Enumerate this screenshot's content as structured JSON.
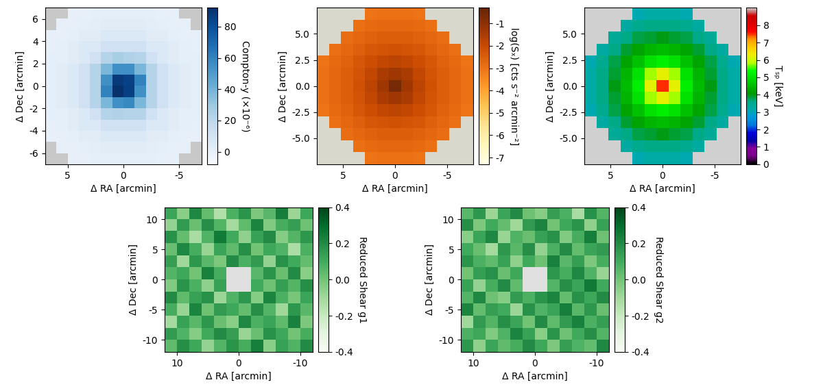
{
  "chart_data": [
    {
      "type": "heatmap",
      "x_label": "Δ RA [arcmin]",
      "y_label": "Δ Dec [arcmin]",
      "xlim": [
        7,
        -7
      ],
      "ylim": [
        -7,
        7
      ],
      "xticks": [
        5,
        0,
        -5
      ],
      "yticks": [
        -6,
        -4,
        -2,
        0,
        2,
        4,
        6
      ],
      "colorbar_label": "Compton-y (×10⁻⁶)",
      "colorbar_range": [
        -8,
        92
      ],
      "colorbar_ticks": [
        0,
        20,
        40,
        60,
        80
      ],
      "cells": [
        [
          null,
          null,
          0,
          0,
          1,
          1,
          1,
          1,
          1,
          1,
          0,
          0,
          null,
          null
        ],
        [
          null,
          0,
          0,
          1,
          2,
          3,
          3,
          3,
          3,
          2,
          1,
          0,
          0,
          null
        ],
        [
          0,
          0,
          1,
          3,
          3,
          6,
          6,
          6,
          6,
          3,
          3,
          1,
          0,
          0
        ],
        [
          0,
          1,
          3,
          6,
          6,
          12,
          12,
          12,
          12,
          6,
          6,
          3,
          1,
          0
        ],
        [
          1,
          1,
          3,
          6,
          12,
          22,
          26,
          24,
          22,
          12,
          6,
          3,
          1,
          1
        ],
        [
          1,
          3,
          6,
          12,
          22,
          38,
          55,
          55,
          38,
          22,
          12,
          6,
          3,
          1
        ],
        [
          1,
          3,
          6,
          12,
          22,
          55,
          88,
          85,
          60,
          22,
          12,
          6,
          3,
          1
        ],
        [
          1,
          3,
          6,
          12,
          22,
          60,
          92,
          86,
          55,
          22,
          12,
          6,
          3,
          1
        ],
        [
          1,
          3,
          6,
          12,
          22,
          38,
          55,
          58,
          38,
          22,
          12,
          6,
          3,
          1
        ],
        [
          1,
          1,
          3,
          6,
          12,
          22,
          24,
          22,
          22,
          12,
          6,
          3,
          1,
          1
        ],
        [
          0,
          1,
          3,
          6,
          6,
          12,
          12,
          12,
          12,
          6,
          6,
          3,
          1,
          0
        ],
        [
          0,
          0,
          1,
          3,
          3,
          6,
          6,
          6,
          6,
          3,
          3,
          1,
          0,
          0
        ],
        [
          null,
          0,
          0,
          1,
          2,
          3,
          3,
          3,
          3,
          2,
          1,
          0,
          0,
          null
        ],
        [
          null,
          null,
          0,
          0,
          1,
          1,
          1,
          1,
          1,
          1,
          0,
          0,
          null,
          null
        ]
      ]
    },
    {
      "type": "heatmap",
      "x_label": "Δ RA [arcmin]",
      "y_label": "Δ Dec [arcmin]",
      "xlim": [
        7.5,
        -7.5
      ],
      "ylim": [
        -7.5,
        7.5
      ],
      "xticks": [
        5,
        0,
        -5
      ],
      "yticks": [
        -5.0,
        -2.5,
        0.0,
        2.5,
        5.0
      ],
      "colorbar_label": "log(Sₓ) [cts s⁻² arcmin⁻²]",
      "colorbar_range": [
        -7.3,
        -0.3
      ],
      "colorbar_ticks": [
        -7,
        -6,
        -5,
        -4,
        -3,
        -2,
        -1
      ],
      "cells": [
        [
          null,
          null,
          null,
          null,
          -3.0,
          -2.95,
          -2.95,
          -2.95,
          -3.0,
          null,
          null,
          null,
          null
        ],
        [
          null,
          null,
          null,
          -2.9,
          -2.8,
          -2.75,
          -2.75,
          -2.75,
          -2.8,
          -2.9,
          null,
          null,
          null
        ],
        [
          null,
          null,
          -2.85,
          -2.75,
          -2.6,
          -2.5,
          -2.5,
          -2.5,
          -2.6,
          -2.75,
          -2.85,
          null,
          null
        ],
        [
          null,
          -2.9,
          -2.75,
          -2.55,
          -2.35,
          -2.25,
          -2.2,
          -2.25,
          -2.35,
          -2.55,
          -2.75,
          -2.9,
          null
        ],
        [
          -3.0,
          -2.8,
          -2.6,
          -2.35,
          -2.1,
          -1.9,
          -1.8,
          -1.9,
          -2.1,
          -2.35,
          -2.6,
          -2.8,
          -3.0
        ],
        [
          -2.95,
          -2.75,
          -2.5,
          -2.25,
          -1.9,
          -1.5,
          -1.3,
          -1.5,
          -1.9,
          -2.25,
          -2.5,
          -2.75,
          -2.95
        ],
        [
          -2.95,
          -2.75,
          -2.5,
          -2.2,
          -1.8,
          -1.3,
          -0.6,
          -1.3,
          -1.8,
          -2.2,
          -2.5,
          -2.75,
          -2.95
        ],
        [
          -2.95,
          -2.75,
          -2.5,
          -2.25,
          -1.9,
          -1.5,
          -1.3,
          -1.5,
          -1.9,
          -2.25,
          -2.5,
          -2.75,
          -2.95
        ],
        [
          -3.0,
          -2.8,
          -2.6,
          -2.35,
          -2.1,
          -1.9,
          -1.8,
          -1.9,
          -2.1,
          -2.35,
          -2.6,
          -2.8,
          -3.0
        ],
        [
          null,
          -2.9,
          -2.75,
          -2.55,
          -2.35,
          -2.25,
          -2.2,
          -2.25,
          -2.35,
          -2.55,
          -2.75,
          -2.9,
          null
        ],
        [
          null,
          null,
          -2.85,
          -2.75,
          -2.6,
          -2.5,
          -2.5,
          -2.5,
          -2.6,
          -2.75,
          -2.85,
          null,
          null
        ],
        [
          null,
          null,
          null,
          -2.9,
          -2.8,
          -2.75,
          -2.75,
          -2.75,
          -2.8,
          -2.9,
          null,
          null,
          null
        ],
        [
          null,
          null,
          null,
          null,
          -3.0,
          -2.95,
          -2.95,
          -2.95,
          -3.0,
          null,
          null,
          null,
          null
        ]
      ]
    },
    {
      "type": "heatmap",
      "x_label": "Δ RA [arcmin]",
      "y_label": "Δ Dec [arcmin]",
      "xlim": [
        7.5,
        -7.5
      ],
      "ylim": [
        -7.5,
        7.5
      ],
      "xticks": [
        5,
        0,
        -5
      ],
      "yticks": [
        -5.0,
        -2.5,
        0.0,
        2.5,
        5.0
      ],
      "colorbar_label": "Tₛₚ [keV]",
      "colorbar_range": [
        0,
        9
      ],
      "colorbar_ticks": [
        0,
        1,
        2,
        3,
        4,
        5,
        6,
        7,
        8
      ],
      "cells": [
        [
          null,
          null,
          null,
          null,
          3.1,
          3.2,
          3.2,
          3.2,
          3.1,
          null,
          null,
          null,
          null
        ],
        [
          null,
          null,
          null,
          3.3,
          3.5,
          3.6,
          3.6,
          3.6,
          3.5,
          3.3,
          null,
          null,
          null
        ],
        [
          null,
          null,
          3.4,
          3.6,
          3.8,
          3.9,
          4.0,
          3.9,
          3.8,
          3.6,
          3.4,
          null,
          null
        ],
        [
          null,
          3.3,
          3.6,
          3.9,
          4.2,
          4.4,
          4.5,
          4.4,
          4.2,
          3.9,
          3.6,
          3.3,
          null
        ],
        [
          3.1,
          3.5,
          3.8,
          4.2,
          4.6,
          5.0,
          5.2,
          5.0,
          4.6,
          4.2,
          3.8,
          3.5,
          3.1
        ],
        [
          3.2,
          3.6,
          3.9,
          4.4,
          5.0,
          5.8,
          6.2,
          5.8,
          5.0,
          4.4,
          3.9,
          3.6,
          3.2
        ],
        [
          3.2,
          3.6,
          4.0,
          4.5,
          5.2,
          6.2,
          7.5,
          6.2,
          5.2,
          4.5,
          4.0,
          3.6,
          3.2
        ],
        [
          3.2,
          3.6,
          3.9,
          4.4,
          5.0,
          5.8,
          6.2,
          5.8,
          5.0,
          4.4,
          3.9,
          3.6,
          3.2
        ],
        [
          3.1,
          3.5,
          3.8,
          4.2,
          4.6,
          5.0,
          5.2,
          5.0,
          4.6,
          4.2,
          3.8,
          3.5,
          3.1
        ],
        [
          null,
          3.3,
          3.6,
          3.9,
          4.2,
          4.4,
          4.5,
          4.4,
          4.2,
          3.9,
          3.6,
          3.3,
          null
        ],
        [
          null,
          null,
          3.4,
          3.6,
          3.8,
          3.9,
          4.0,
          3.9,
          3.8,
          3.6,
          3.4,
          null,
          null
        ],
        [
          null,
          null,
          null,
          3.3,
          3.5,
          3.6,
          3.6,
          3.6,
          3.5,
          3.3,
          null,
          null,
          null
        ],
        [
          null,
          null,
          null,
          null,
          3.1,
          3.2,
          3.2,
          3.2,
          3.1,
          null,
          null,
          null,
          null
        ]
      ]
    },
    {
      "type": "heatmap",
      "x_label": "Δ RA [arcmin]",
      "y_label": "Δ Dec [arcmin]",
      "xlim": [
        12,
        -12
      ],
      "ylim": [
        -12,
        12
      ],
      "xticks": [
        10,
        0,
        -10
      ],
      "yticks": [
        -10,
        -5,
        0,
        5,
        10
      ],
      "colorbar_label": "Reduced Shear g1",
      "colorbar_range": [
        -0.4,
        0.4
      ],
      "colorbar_ticks": [
        -0.4,
        -0.2,
        0.0,
        0.2,
        0.4
      ],
      "cells": [
        [
          0.12,
          -0.05,
          0.21,
          0.03,
          -0.14,
          0.08,
          0.17,
          -0.02,
          0.05,
          0.24,
          -0.09,
          0.11
        ],
        [
          -0.07,
          0.15,
          0.02,
          0.19,
          0.06,
          -0.11,
          0.04,
          0.22,
          -0.03,
          0.09,
          0.14,
          0.01
        ],
        [
          0.18,
          0.03,
          -0.12,
          0.07,
          0.25,
          0.1,
          -0.06,
          0.13,
          0.2,
          -0.04,
          0.06,
          0.16
        ],
        [
          0.02,
          0.21,
          0.09,
          -0.08,
          0.12,
          0.04,
          0.19,
          0.0,
          0.11,
          0.07,
          -0.13,
          0.08
        ],
        [
          0.14,
          -0.1,
          0.16,
          0.05,
          -0.02,
          0.2,
          0.08,
          0.15,
          -0.07,
          0.18,
          0.1,
          0.03
        ],
        [
          0.06,
          0.11,
          0.0,
          0.23,
          0.09,
          null,
          null,
          0.05,
          0.17,
          0.02,
          0.2,
          -0.05
        ],
        [
          -0.03,
          0.17,
          0.08,
          -0.06,
          0.13,
          null,
          null,
          0.1,
          0.01,
          0.14,
          0.06,
          0.19
        ],
        [
          0.2,
          0.04,
          0.13,
          0.18,
          -0.09,
          0.07,
          0.16,
          -0.04,
          0.22,
          0.08,
          -0.01,
          0.12
        ],
        [
          0.09,
          -0.08,
          0.22,
          0.01,
          0.15,
          0.11,
          0.03,
          0.19,
          0.06,
          -0.1,
          0.16,
          0.05
        ],
        [
          -0.11,
          0.13,
          0.05,
          0.16,
          0.02,
          -0.05,
          0.21,
          0.08,
          0.12,
          0.04,
          0.23,
          -0.02
        ],
        [
          0.15,
          0.07,
          -0.04,
          0.1,
          0.2,
          0.14,
          -0.08,
          0.02,
          0.18,
          0.11,
          0.0,
          0.09
        ],
        [
          0.04,
          0.19,
          0.11,
          -0.07,
          0.06,
          0.17,
          0.09,
          0.24,
          -0.05,
          0.13,
          0.07,
          0.2
        ]
      ]
    },
    {
      "type": "heatmap",
      "x_label": "Δ RA [arcmin]",
      "y_label": "Δ Dec [arcmin]",
      "xlim": [
        12,
        -12
      ],
      "ylim": [
        -12,
        12
      ],
      "xticks": [
        10,
        0,
        -10
      ],
      "yticks": [
        -10,
        -5,
        0,
        5,
        10
      ],
      "colorbar_label": "Reduced Shear g2",
      "colorbar_range": [
        -0.4,
        0.4
      ],
      "colorbar_ticks": [
        -0.4,
        -0.2,
        0.0,
        0.2,
        0.4
      ],
      "cells": [
        [
          0.05,
          0.16,
          -0.09,
          0.12,
          0.2,
          0.01,
          -0.04,
          0.14,
          0.08,
          -0.12,
          0.18,
          0.06
        ],
        [
          0.19,
          -0.02,
          0.1,
          0.03,
          -0.1,
          0.15,
          0.22,
          0.0,
          0.11,
          0.17,
          -0.06,
          0.13
        ],
        [
          -0.05,
          0.12,
          0.21,
          -0.08,
          0.07,
          0.02,
          0.13,
          0.18,
          -0.03,
          0.09,
          0.24,
          0.01
        ],
        [
          0.1,
          0.02,
          -0.11,
          0.16,
          0.05,
          0.19,
          -0.07,
          0.08,
          0.2,
          0.03,
          0.12,
          0.15
        ],
        [
          0.17,
          0.08,
          0.04,
          0.13,
          -0.06,
          0.1,
          0.01,
          0.23,
          0.05,
          0.14,
          -0.02,
          0.09
        ],
        [
          0.0,
          0.14,
          0.18,
          0.02,
          0.11,
          null,
          null,
          0.16,
          0.09,
          0.21,
          0.07,
          -0.08
        ],
        [
          0.13,
          -0.07,
          0.09,
          0.2,
          0.04,
          null,
          null,
          0.06,
          0.19,
          0.12,
          0.25,
          0.1
        ],
        [
          0.06,
          0.21,
          0.01,
          -0.04,
          0.15,
          0.08,
          0.17,
          0.22,
          0.03,
          0.18,
          0.11,
          0.2
        ],
        [
          0.22,
          0.03,
          0.14,
          0.1,
          -0.09,
          0.18,
          0.07,
          0.12,
          0.24,
          0.05,
          0.16,
          0.02
        ],
        [
          -0.1,
          0.15,
          0.06,
          0.19,
          0.12,
          0.0,
          0.2,
          0.04,
          0.15,
          0.23,
          0.08,
          0.14
        ],
        [
          0.08,
          0.11,
          -0.03,
          0.07,
          0.22,
          0.13,
          -0.05,
          0.17,
          0.01,
          0.1,
          0.19,
          0.06
        ],
        [
          0.16,
          -0.06,
          0.12,
          0.04,
          0.09,
          0.2,
          0.11,
          -0.02,
          0.14,
          0.07,
          0.03,
          0.21
        ]
      ]
    }
  ]
}
